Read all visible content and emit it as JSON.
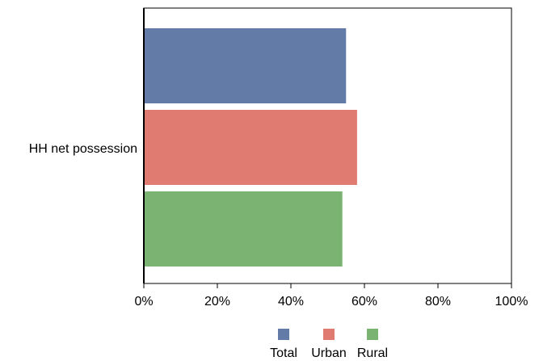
{
  "chart_data": {
    "type": "bar",
    "orientation": "horizontal",
    "categories": [
      "HH net possession"
    ],
    "series": [
      {
        "name": "Total",
        "values": [
          55
        ],
        "color": "#627ca7"
      },
      {
        "name": "Urban",
        "values": [
          58
        ],
        "color": "#e07b72"
      },
      {
        "name": "Rural",
        "values": [
          54
        ],
        "color": "#7bb472"
      }
    ],
    "xlim": [
      0,
      100
    ],
    "x_ticks": [
      "0%",
      "20%",
      "40%",
      "60%",
      "80%",
      "100%"
    ],
    "x_tick_values": [
      0,
      20,
      40,
      60,
      80,
      100
    ],
    "grid": false,
    "legend": "bottom"
  }
}
